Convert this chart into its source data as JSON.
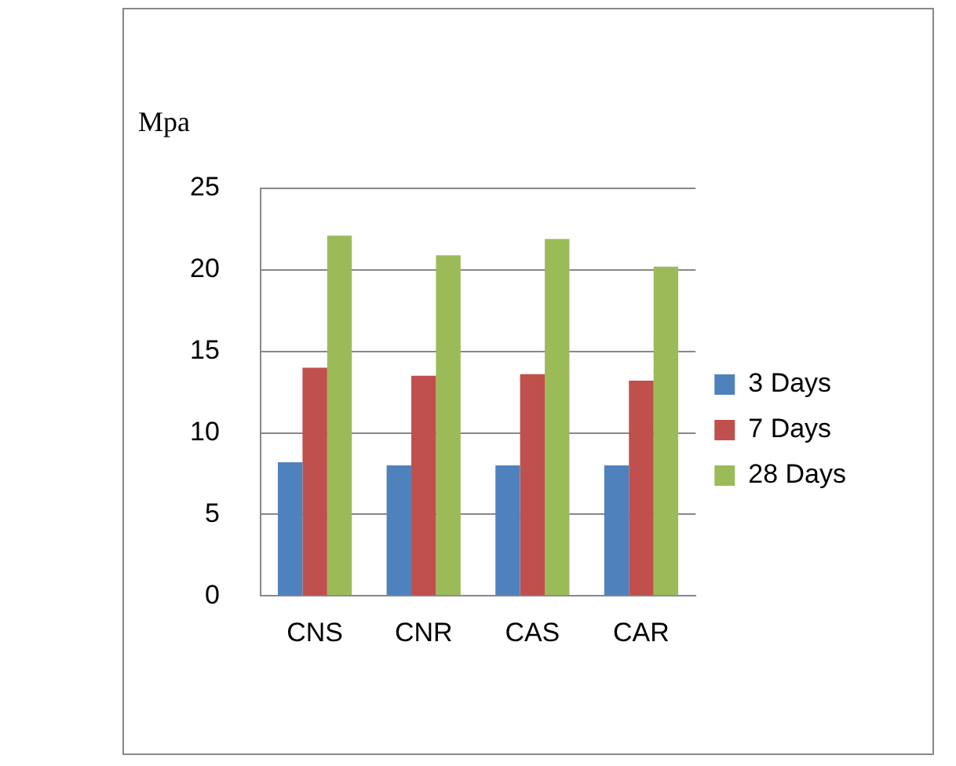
{
  "chart_data": {
    "type": "bar",
    "ylabel": "Mpa",
    "categories": [
      "CNS",
      "CNR",
      "CAS",
      "CAR"
    ],
    "series": [
      {
        "name": "3 Days",
        "color": "#4f81bd",
        "values": [
          8.2,
          8.0,
          8.0,
          8.0
        ]
      },
      {
        "name": "7 Days",
        "color": "#c0504d",
        "values": [
          14.0,
          13.5,
          13.6,
          13.2
        ]
      },
      {
        "name": "28 Days",
        "color": "#9bbb59",
        "values": [
          22.1,
          20.9,
          21.9,
          20.2
        ]
      }
    ],
    "ylim": [
      0,
      25
    ],
    "yticks": [
      0,
      5,
      10,
      15,
      20,
      25
    ],
    "grid": "y",
    "legend": "right"
  }
}
